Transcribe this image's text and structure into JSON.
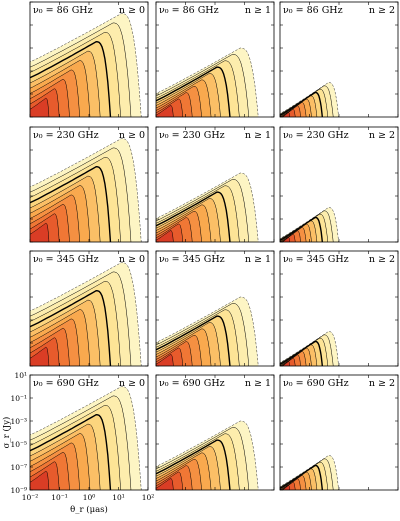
{
  "chart_data": {
    "type": "contour",
    "grid": {
      "rows": 4,
      "cols": 3
    },
    "xlabel": "θ_r (μas)",
    "ylabel": "σ_r (Jy)",
    "xscale": "log",
    "yscale": "log",
    "xlim": [
      0.01,
      100
    ],
    "ylim": [
      1e-09,
      10
    ],
    "xticks": [
      "10⁻²",
      "10⁻¹",
      "10⁰",
      "10¹",
      "10²"
    ],
    "yticks": [
      "10¹",
      "10⁻¹",
      "10⁻³",
      "10⁻⁵",
      "10⁻⁷",
      "10⁻⁹"
    ],
    "rows": [
      {
        "freq_label": "ν₀ = 86 GHz"
      },
      {
        "freq_label": "ν₀ = 230 GHz"
      },
      {
        "freq_label": "ν₀ = 345 GHz"
      },
      {
        "freq_label": "ν₀ = 690 GHz"
      }
    ],
    "cols": [
      {
        "n_label": "n ≥ 0",
        "x_cutoff": 60,
        "peak_y": 1
      },
      {
        "n_label": "n ≥ 1",
        "x_cutoff": 30,
        "peak_y": 0.001
      },
      {
        "n_label": "n ≥ 2",
        "x_cutoff": 1,
        "peak_y": 1e-06
      }
    ],
    "colors": {
      "outer": "#fdf5c4",
      "inner": "#cc1f1f",
      "contour": "#000000",
      "outer_dashed": "#333333"
    }
  }
}
